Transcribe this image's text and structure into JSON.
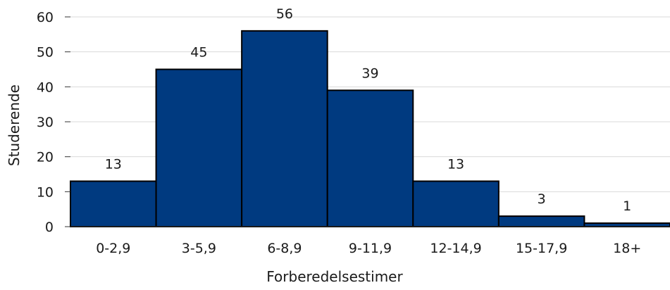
{
  "chart_data": {
    "type": "bar",
    "title": "",
    "xlabel": "Forberedelsestimer",
    "ylabel": "Studerende",
    "categories": [
      "0-2,9",
      "3-5,9",
      "6-8,9",
      "9-11,9",
      "12-14,9",
      "15-17,9",
      "18+"
    ],
    "values": [
      13,
      45,
      56,
      39,
      13,
      3,
      1
    ],
    "ylim": [
      0,
      60
    ],
    "yticks": [
      0,
      10,
      20,
      30,
      40,
      50,
      60
    ],
    "grid": true,
    "legend": "none",
    "bar_color": "#003a80",
    "bar_outline": "#000000",
    "grid_color": "#d9d9d9"
  }
}
